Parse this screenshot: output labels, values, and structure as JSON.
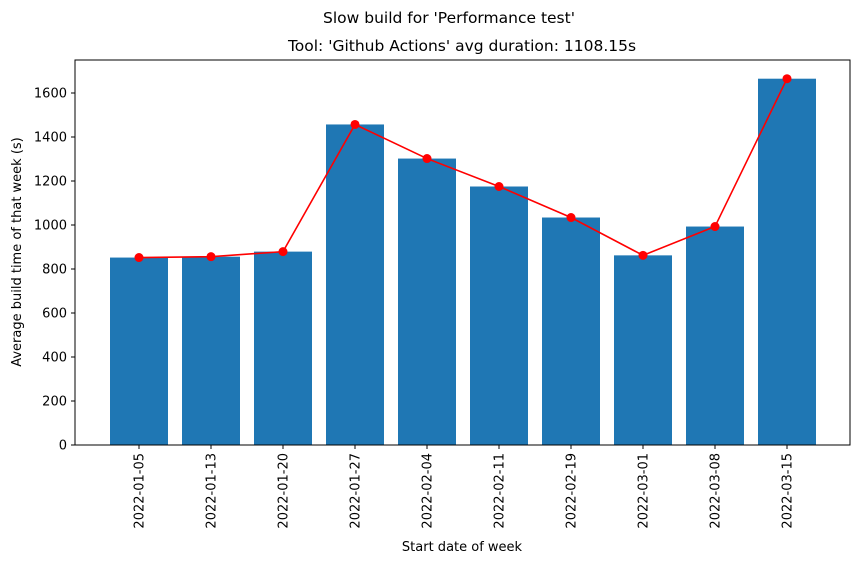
{
  "chart_data": {
    "type": "bar",
    "suptitle": "Slow build for 'Performance test'",
    "title": "Tool: 'Github Actions' avg duration: 1108.15s",
    "xlabel": "Start date of week",
    "ylabel": "Average build time of that week (s)",
    "categories": [
      "2022-01-05",
      "2022-01-13",
      "2022-01-20",
      "2022-01-27",
      "2022-02-04",
      "2022-02-11",
      "2022-02-19",
      "2022-03-01",
      "2022-03-08",
      "2022-03-15"
    ],
    "values": [
      852,
      856,
      879,
      1457,
      1302,
      1175,
      1034,
      862,
      993,
      1665
    ],
    "line_values": [
      852,
      856,
      879,
      1457,
      1302,
      1175,
      1034,
      862,
      993,
      1665
    ],
    "ylim": [
      0,
      1750
    ],
    "yticks": [
      0,
      200,
      400,
      600,
      800,
      1000,
      1200,
      1400,
      1600
    ],
    "bar_color": "#1f77b4",
    "line_color": "#ff0000",
    "grid": false
  }
}
